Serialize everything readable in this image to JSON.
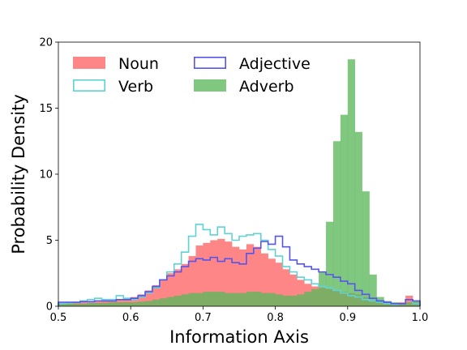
{
  "chart_data": {
    "type": "histogram",
    "xlabel": "Information Axis",
    "ylabel": "Probability Density",
    "xlim": [
      0.5,
      1.0
    ],
    "ylim": [
      0,
      20
    ],
    "xticks": [
      "0.5",
      "0.6",
      "0.7",
      "0.8",
      "0.9",
      "1.0"
    ],
    "yticks": [
      "0",
      "5",
      "10",
      "15",
      "20"
    ],
    "legend_position": "top-left",
    "grid": false,
    "bin_edges": [
      0.5,
      0.51,
      0.52,
      0.53,
      0.54,
      0.55,
      0.56,
      0.57,
      0.58,
      0.59,
      0.6,
      0.61,
      0.62,
      0.63,
      0.64,
      0.65,
      0.66,
      0.67,
      0.68,
      0.69,
      0.7,
      0.71,
      0.72,
      0.73,
      0.74,
      0.75,
      0.76,
      0.77,
      0.78,
      0.79,
      0.8,
      0.81,
      0.82,
      0.83,
      0.84,
      0.85,
      0.86,
      0.87,
      0.88,
      0.89,
      0.9,
      0.91,
      0.92,
      0.93,
      0.94,
      0.95,
      0.96,
      0.97,
      0.98,
      0.99,
      1.0
    ],
    "series": [
      {
        "name": "Noun",
        "style": "filled",
        "color": "#ff7f7f",
        "values": [
          0.2,
          0.2,
          0.25,
          0.3,
          0.3,
          0.35,
          0.4,
          0.4,
          0.5,
          0.6,
          0.7,
          0.9,
          1.2,
          1.6,
          2.0,
          2.5,
          2.8,
          3.2,
          3.8,
          4.6,
          4.8,
          5.0,
          5.1,
          4.9,
          4.5,
          4.3,
          4.7,
          4.5,
          4.0,
          3.6,
          3.3,
          2.8,
          2.4,
          2.0,
          1.7,
          1.5,
          1.4,
          1.3,
          1.2,
          1.1,
          1.0,
          0.9,
          0.7,
          0.5,
          0.4,
          0.3,
          0.2,
          0.3,
          0.8,
          0.3
        ]
      },
      {
        "name": "Verb",
        "style": "step",
        "color": "#5fd3d3",
        "values": [
          0.2,
          0.25,
          0.3,
          0.4,
          0.5,
          0.6,
          0.5,
          0.5,
          0.8,
          0.6,
          0.5,
          0.7,
          1.0,
          1.4,
          2.0,
          2.6,
          3.2,
          4.1,
          5.3,
          6.2,
          5.8,
          5.4,
          6.0,
          5.5,
          5.0,
          5.3,
          5.4,
          5.5,
          5.0,
          4.3,
          3.8,
          3.0,
          2.6,
          2.2,
          2.0,
          1.7,
          1.5,
          1.4,
          1.2,
          1.0,
          0.8,
          0.7,
          0.5,
          0.4,
          0.3,
          0.2,
          0.15,
          0.2,
          0.5,
          0.2
        ]
      },
      {
        "name": "Adjective",
        "style": "step",
        "color": "#5555ee",
        "values": [
          0.3,
          0.3,
          0.3,
          0.35,
          0.35,
          0.4,
          0.4,
          0.4,
          0.5,
          0.5,
          0.6,
          0.8,
          1.1,
          1.5,
          2.0,
          2.3,
          2.6,
          3.0,
          3.4,
          3.6,
          3.5,
          3.7,
          3.4,
          3.6,
          3.3,
          3.2,
          4.0,
          4.4,
          4.9,
          4.7,
          5.3,
          4.5,
          3.5,
          3.2,
          3.0,
          2.8,
          2.6,
          2.4,
          2.2,
          1.9,
          1.7,
          1.2,
          0.9,
          0.6,
          0.4,
          0.3,
          0.2,
          0.2,
          0.5,
          0.4
        ]
      },
      {
        "name": "Adverb",
        "style": "filled",
        "color": "#5cb85c",
        "values": [
          0.2,
          0.2,
          0.2,
          0.2,
          0.25,
          0.25,
          0.25,
          0.3,
          0.3,
          0.3,
          0.3,
          0.35,
          0.4,
          0.5,
          0.6,
          0.7,
          0.8,
          0.9,
          1.0,
          1.0,
          1.1,
          1.1,
          1.1,
          1.0,
          1.0,
          1.0,
          1.1,
          1.1,
          1.0,
          1.0,
          0.9,
          0.8,
          0.8,
          0.9,
          1.1,
          1.3,
          2.6,
          6.4,
          12.5,
          14.5,
          18.7,
          13.2,
          8.7,
          2.4,
          0.7,
          0.4,
          0.3,
          0.2,
          0.3,
          0.4
        ]
      }
    ]
  }
}
